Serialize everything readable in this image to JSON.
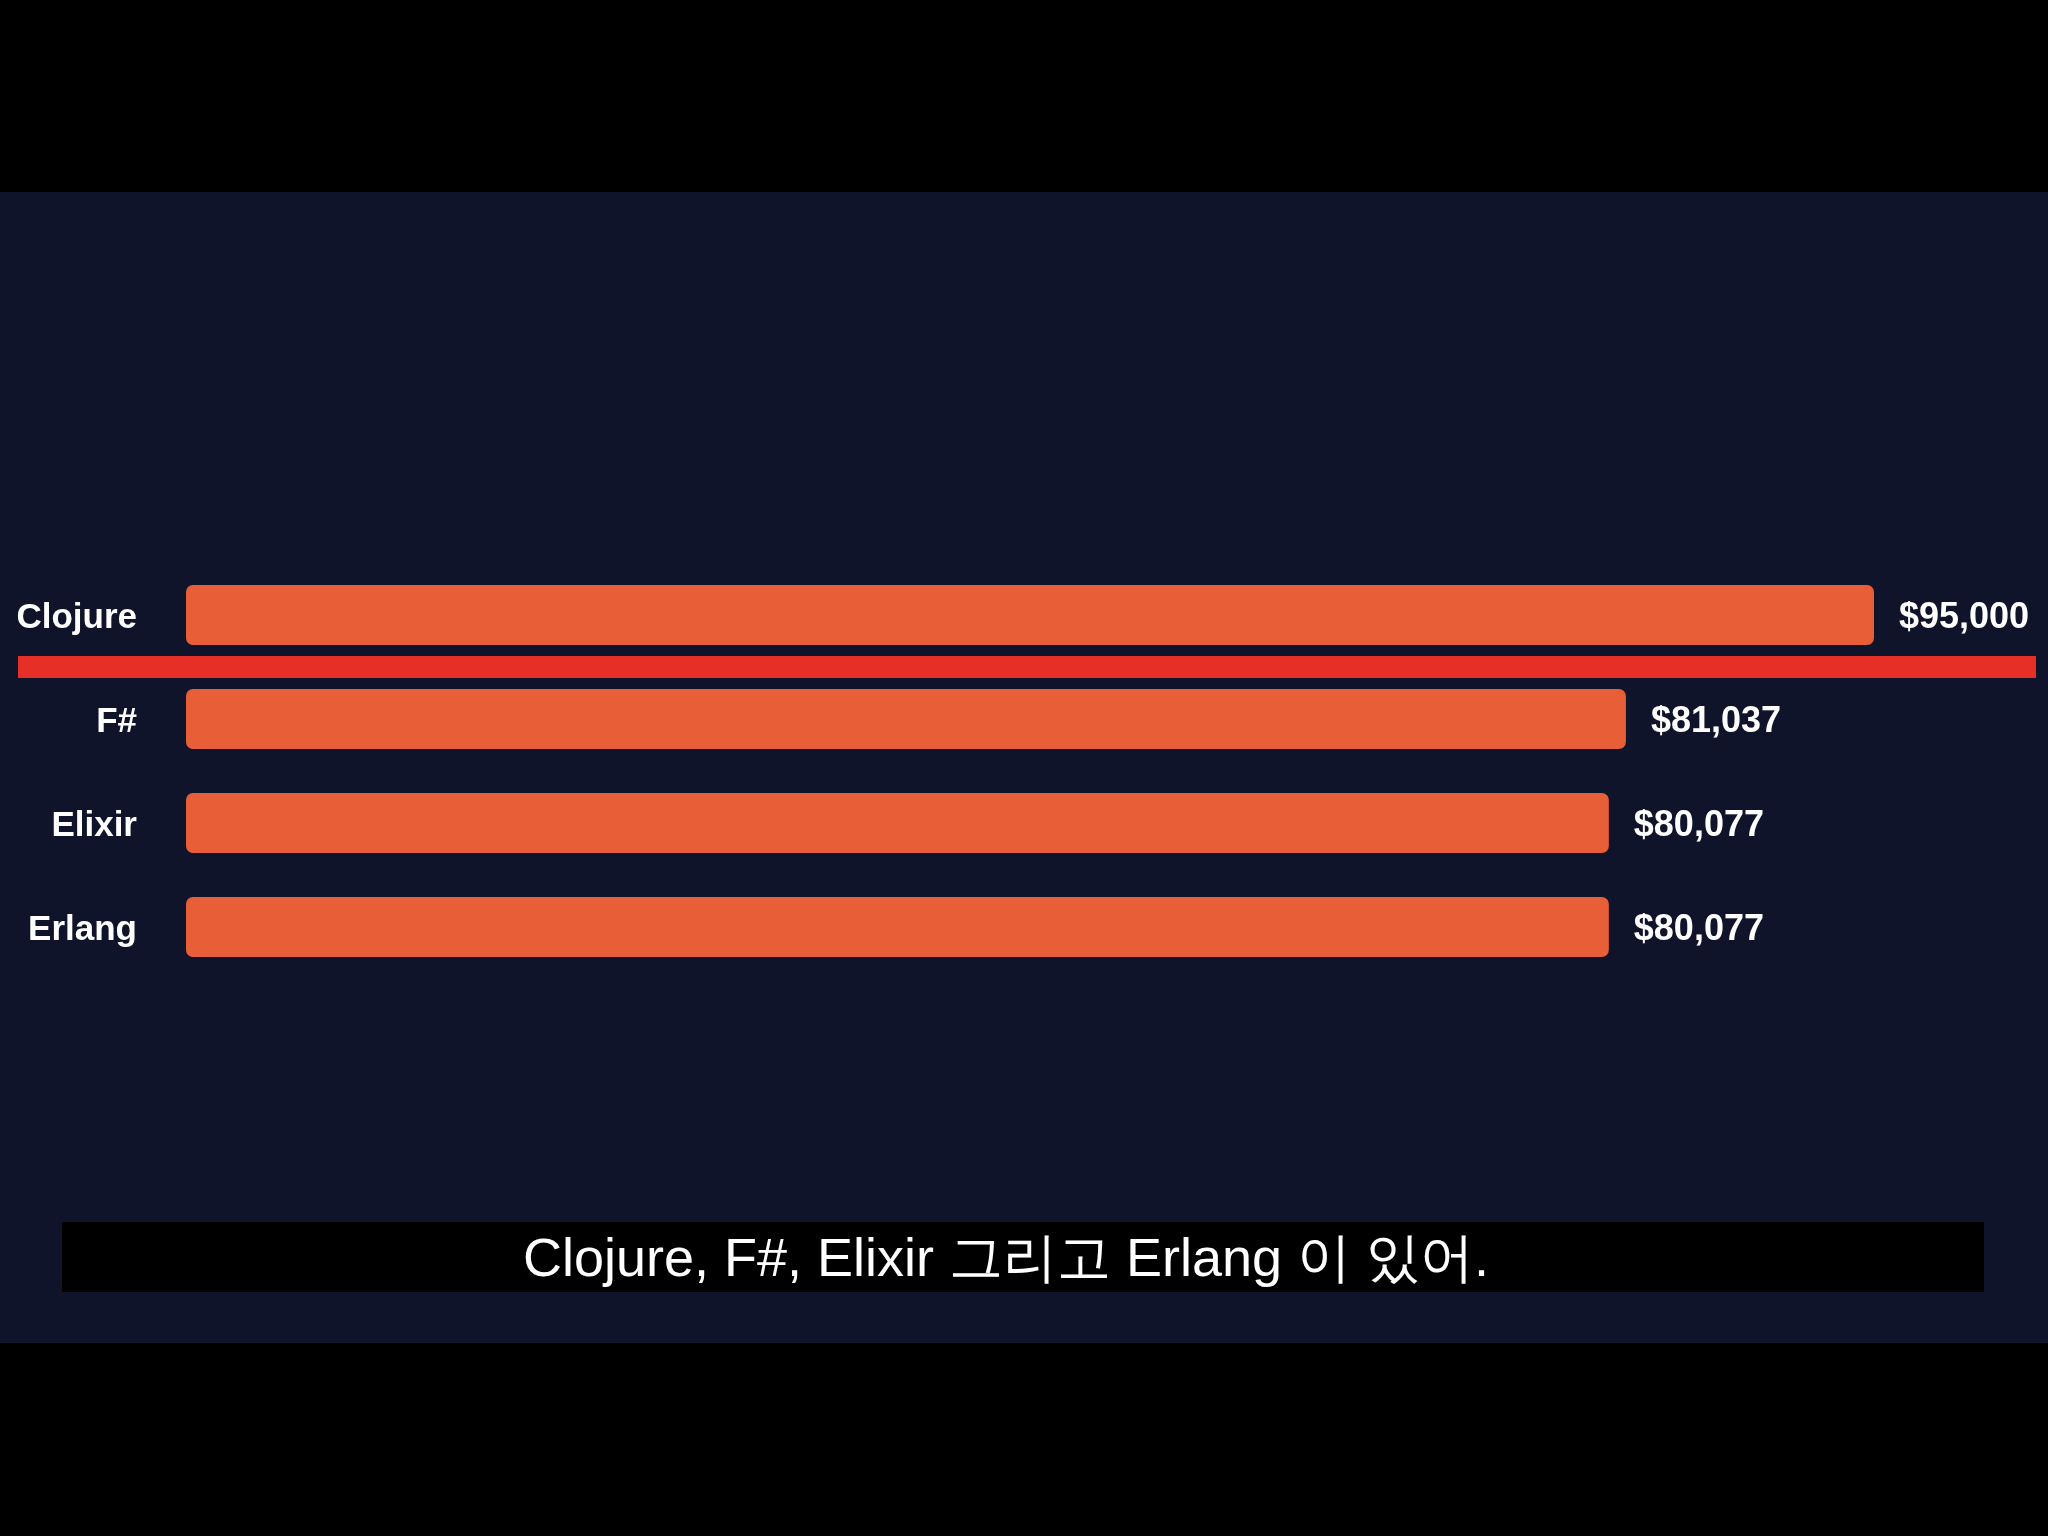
{
  "chart_data": {
    "type": "bar",
    "orientation": "horizontal",
    "categories": [
      "Clojure",
      "F#",
      "Elixir",
      "Erlang"
    ],
    "values": [
      95000,
      81037,
      80077,
      80077
    ],
    "value_labels": [
      "$95,000",
      "$81,037",
      "$80,077",
      "$80,077"
    ],
    "color": "#e85f37",
    "annotations": [
      "Clojure, F#, Elixir 그리고 Erlang 이 있어."
    ]
  }
}
